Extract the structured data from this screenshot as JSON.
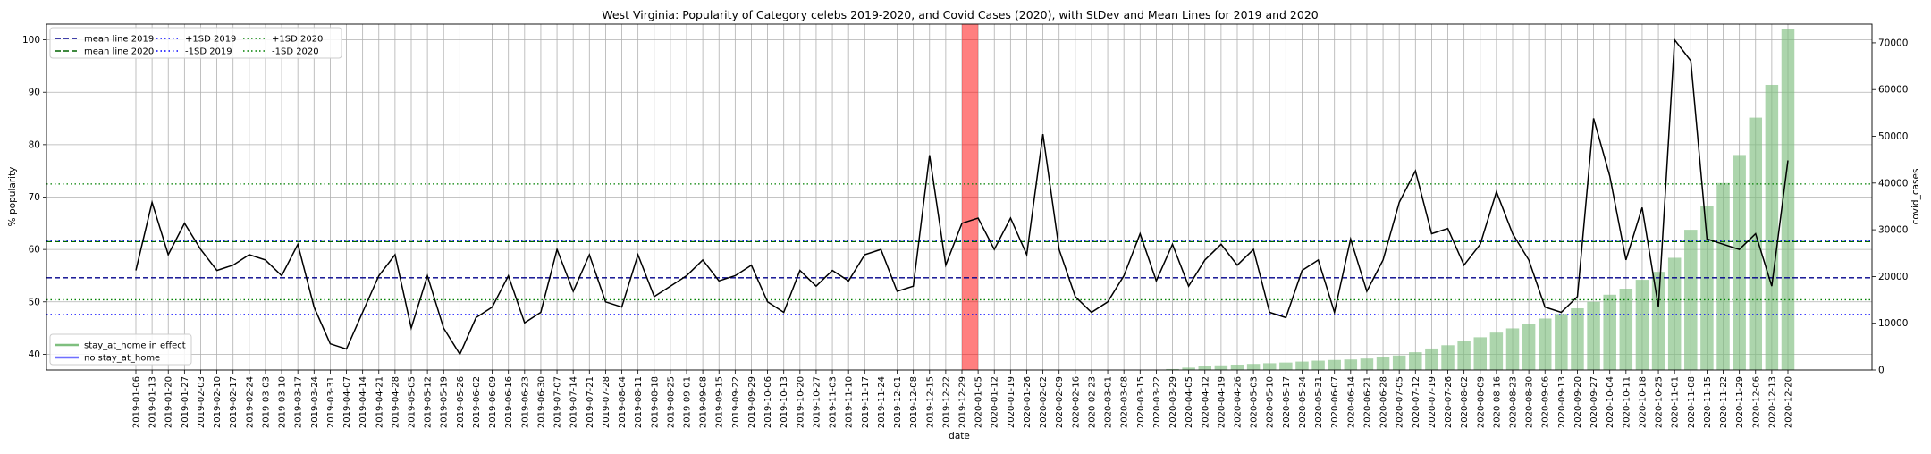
{
  "chart_data": {
    "type": "line",
    "title": "West Virginia: Popularity of Category celebs 2019-2020, and Covid Cases (2020), with StDev and Mean Lines for 2019 and 2020",
    "xlabel": "date",
    "ylabel_left": "% popularity",
    "ylabel_right": "covid_cases",
    "ylim_left": [
      37,
      103
    ],
    "ylim_right": [
      0,
      74000
    ],
    "yticks_left": [
      40,
      50,
      60,
      70,
      80,
      90,
      100
    ],
    "yticks_right": [
      0,
      10000,
      20000,
      30000,
      40000,
      50000,
      60000,
      70000
    ],
    "grid": true,
    "legend_lines_placement": "top-left",
    "legend_bars_placement": "bottom-left",
    "dates": [
      "2019-01-06",
      "2019-01-13",
      "2019-01-20",
      "2019-01-27",
      "2019-02-03",
      "2019-02-10",
      "2019-02-17",
      "2019-02-24",
      "2019-03-03",
      "2019-03-10",
      "2019-03-17",
      "2019-03-24",
      "2019-03-31",
      "2019-04-07",
      "2019-04-14",
      "2019-04-21",
      "2019-04-28",
      "2019-05-05",
      "2019-05-12",
      "2019-05-19",
      "2019-05-26",
      "2019-06-02",
      "2019-06-09",
      "2019-06-16",
      "2019-06-23",
      "2019-06-30",
      "2019-07-07",
      "2019-07-14",
      "2019-07-21",
      "2019-07-28",
      "2019-08-04",
      "2019-08-11",
      "2019-08-18",
      "2019-08-25",
      "2019-09-01",
      "2019-09-08",
      "2019-09-15",
      "2019-09-22",
      "2019-09-29",
      "2019-10-06",
      "2019-10-13",
      "2019-10-20",
      "2019-10-27",
      "2019-11-03",
      "2019-11-10",
      "2019-11-17",
      "2019-11-24",
      "2019-12-01",
      "2019-12-08",
      "2019-12-15",
      "2019-12-22",
      "2019-12-29",
      "2020-01-05",
      "2020-01-12",
      "2020-01-19",
      "2020-01-26",
      "2020-02-02",
      "2020-02-09",
      "2020-02-16",
      "2020-02-23",
      "2020-03-01",
      "2020-03-08",
      "2020-03-15",
      "2020-03-22",
      "2020-03-29",
      "2020-04-05",
      "2020-04-12",
      "2020-04-19",
      "2020-04-26",
      "2020-05-03",
      "2020-05-10",
      "2020-05-17",
      "2020-05-24",
      "2020-05-31",
      "2020-06-07",
      "2020-06-14",
      "2020-06-21",
      "2020-06-28",
      "2020-07-05",
      "2020-07-12",
      "2020-07-19",
      "2020-07-26",
      "2020-08-02",
      "2020-08-09",
      "2020-08-16",
      "2020-08-23",
      "2020-08-30",
      "2020-09-06",
      "2020-09-13",
      "2020-09-20",
      "2020-09-27",
      "2020-10-04",
      "2020-10-11",
      "2020-10-18",
      "2020-10-25",
      "2020-11-01",
      "2020-11-08",
      "2020-11-15",
      "2020-11-22",
      "2020-11-29",
      "2020-12-06",
      "2020-12-13",
      "2020-12-20"
    ],
    "series": [
      {
        "name": "",
        "axis": "left",
        "color": "#000000",
        "values": [
          56,
          69,
          59,
          65,
          60,
          56,
          57,
          59,
          58,
          55,
          61,
          49,
          42,
          41,
          48,
          55,
          59,
          45,
          55,
          45,
          40,
          47,
          49,
          55,
          46,
          48,
          60,
          52,
          59,
          50,
          49,
          59,
          51,
          53,
          55,
          58,
          54,
          55,
          57,
          50,
          48,
          56,
          53,
          56,
          54,
          59,
          60,
          52,
          53,
          78,
          57,
          65,
          66,
          60,
          66,
          59,
          82,
          60,
          51,
          48,
          50,
          55,
          63,
          54,
          61,
          53,
          58,
          61,
          57,
          60,
          48,
          47,
          56,
          58,
          48,
          62,
          52,
          58,
          69,
          75,
          63,
          64,
          57,
          61,
          71,
          63,
          58,
          49,
          48,
          51,
          85,
          74,
          58,
          68,
          49,
          100,
          96,
          62,
          61,
          60,
          63,
          53,
          77
        ]
      },
      {
        "name": "",
        "axis": "right",
        "type": "bar",
        "color": "#7fbf7f",
        "values": [
          0,
          0,
          0,
          0,
          0,
          0,
          0,
          0,
          0,
          0,
          0,
          0,
          0,
          0,
          0,
          0,
          0,
          0,
          0,
          0,
          0,
          0,
          0,
          0,
          0,
          0,
          0,
          0,
          0,
          0,
          0,
          0,
          0,
          0,
          0,
          0,
          0,
          0,
          0,
          0,
          0,
          0,
          0,
          0,
          0,
          0,
          0,
          0,
          0,
          0,
          0,
          0,
          0,
          0,
          0,
          0,
          0,
          0,
          0,
          0,
          0,
          0,
          0,
          20,
          200,
          500,
          800,
          1000,
          1150,
          1300,
          1450,
          1600,
          1800,
          2000,
          2150,
          2250,
          2450,
          2700,
          3100,
          3800,
          4600,
          5300,
          6200,
          7000,
          8000,
          8900,
          9800,
          11000,
          12000,
          13200,
          14600,
          16100,
          17400,
          19300,
          21000,
          24000,
          30000,
          35000,
          40000,
          46000,
          54000,
          61000,
          73000
        ]
      }
    ],
    "reference_lines": [
      {
        "label": "mean line 2019",
        "value": 54.6,
        "color": "#00008b",
        "style": "dashed"
      },
      {
        "label": "mean line 2020",
        "value": 61.5,
        "color": "#006400",
        "style": "dashed"
      },
      {
        "label": "+1SD 2019",
        "value": 61.7,
        "color": "#0000ff",
        "style": "dotted"
      },
      {
        "label": "-1SD 2019",
        "value": 47.6,
        "color": "#0000ff",
        "style": "dotted"
      },
      {
        "label": "+1SD 2020",
        "value": 72.5,
        "color": "#008000",
        "style": "dotted"
      },
      {
        "label": "-1SD 2020",
        "value": 50.4,
        "color": "#008000",
        "style": "dotted"
      }
    ],
    "highlight_span": {
      "from": "2019-12-29",
      "to": "2020-01-05",
      "color": "#ff0000"
    },
    "bar_legend": [
      {
        "label": "stay_at_home in effect",
        "color": "#7fbf7f"
      },
      {
        "label": "no stay_at_home",
        "color": "#6f6fff"
      }
    ]
  }
}
